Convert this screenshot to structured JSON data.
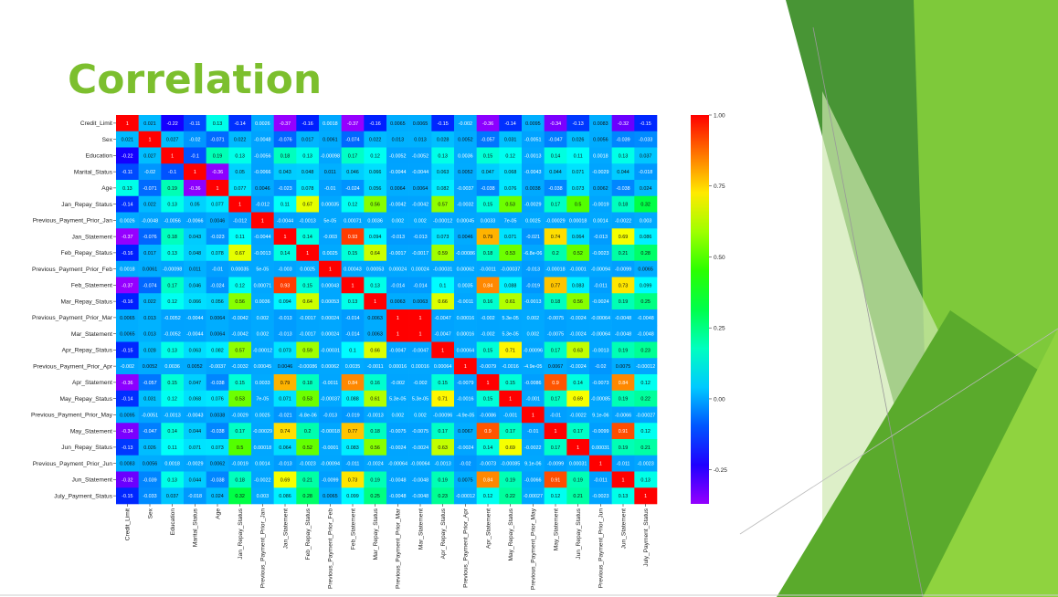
{
  "slide": {
    "title": "Correlation"
  },
  "chart_data": {
    "type": "heatmap",
    "title": "",
    "labels": [
      "Credit_Limit",
      "Sex",
      "Education",
      "Marital_Status",
      "Age",
      "Jan_Repay_Status",
      "Previous_Payment_Prior_Jan",
      "Jan_Statement",
      "Feb_Repay_Status",
      "Previous_Payment_Prior_Feb",
      "Feb_Statement",
      "Mar_Repay_Status",
      "Previous_Payment_Prior_Mar",
      "Mar_Statement",
      "Apr_Repay_Status",
      "Previous_Payment_Prior_Apr",
      "Apr_Statement",
      "May_Repay_Status",
      "Previous_Payment_Prior_May",
      "May_Statement",
      "Jun_Repay_Status",
      "Previous_Payment_Prior_Jun",
      "Jun_Statement",
      "July_Payment_Status"
    ],
    "values": [
      [
        "1",
        "0.021",
        "-0.22",
        "-0.11",
        "0.13",
        "-0.14",
        "0.0026",
        "-0.37",
        "-0.16",
        "0.0018",
        "-0.37",
        "-0.16",
        "0.0065",
        "0.0065",
        "-0.15",
        "-0.002",
        "-0.36",
        "-0.14",
        "0.0095",
        "-0.34",
        "-0.13",
        "0.0083",
        "-0.32",
        "-0.15"
      ],
      [
        "0.021",
        "1",
        "0.027",
        "-0.02",
        "-0.071",
        "0.022",
        "-0.0048",
        "-0.076",
        "0.017",
        "0.0061",
        "-0.074",
        "0.022",
        "0.013",
        "0.013",
        "0.028",
        "0.0052",
        "-0.057",
        "0.031",
        "-0.0051",
        "-0.047",
        "0.026",
        "0.0056",
        "-0.039",
        "-0.033"
      ],
      [
        "-0.22",
        "0.027",
        "1",
        "-0.1",
        "0.19",
        "0.13",
        "-0.0056",
        "0.18",
        "0.13",
        "-0.00098",
        "0.17",
        "0.12",
        "-0.0052",
        "-0.0052",
        "0.13",
        "0.0036",
        "0.15",
        "0.12",
        "-0.0013",
        "0.14",
        "0.11",
        "0.0018",
        "0.13",
        "0.037"
      ],
      [
        "-0.11",
        "-0.02",
        "-0.1",
        "1",
        "-0.36",
        "0.05",
        "-0.0066",
        "0.043",
        "0.048",
        "0.011",
        "0.046",
        "0.066",
        "-0.0044",
        "-0.0044",
        "0.063",
        "0.0052",
        "0.047",
        "0.068",
        "-0.0043",
        "0.044",
        "0.071",
        "-0.0029",
        "0.044",
        "-0.018"
      ],
      [
        "0.13",
        "-0.071",
        "0.19",
        "-0.36",
        "1",
        "0.077",
        "0.0046",
        "-0.023",
        "0.078",
        "-0.01",
        "-0.024",
        "0.056",
        "0.0064",
        "0.0064",
        "0.082",
        "-0.0037",
        "-0.038",
        "0.076",
        "0.0038",
        "-0.038",
        "0.073",
        "0.0062",
        "-0.038",
        "0.024"
      ],
      [
        "-0.14",
        "0.022",
        "0.13",
        "0.05",
        "0.077",
        "1",
        "-0.012",
        "0.11",
        "0.67",
        "0.00035",
        "0.12",
        "0.56",
        "-0.0042",
        "-0.0042",
        "0.57",
        "-0.0032",
        "0.15",
        "0.53",
        "-0.0029",
        "0.17",
        "0.5",
        "-0.0019",
        "0.18",
        "0.32"
      ],
      [
        "0.0026",
        "-0.0048",
        "-0.0056",
        "-0.0066",
        "0.0046",
        "-0.012",
        "1",
        "-0.0044",
        "-0.0013",
        "5e-05",
        "0.00071",
        "0.0036",
        "0.002",
        "0.002",
        "-0.00012",
        "0.00045",
        "0.0033",
        "7e-05",
        "0.0025",
        "-0.00029",
        "0.00018",
        "0.0014",
        "-0.0022",
        "0.003"
      ],
      [
        "-0.37",
        "-0.076",
        "0.18",
        "0.043",
        "-0.023",
        "0.11",
        "-0.0044",
        "1",
        "0.14",
        "-0.003",
        "0.93",
        "0.094",
        "-0.013",
        "-0.013",
        "0.073",
        "0.0046",
        "0.79",
        "0.071",
        "-0.021",
        "0.74",
        "0.064",
        "-0.013",
        "0.69",
        "0.086"
      ],
      [
        "-0.16",
        "0.017",
        "0.13",
        "0.048",
        "0.078",
        "0.67",
        "-0.0013",
        "0.14",
        "1",
        "0.0025",
        "0.15",
        "0.64",
        "-0.0017",
        "-0.0017",
        "0.59",
        "-0.00086",
        "0.18",
        "0.53",
        "-6.8e-06",
        "0.2",
        "0.52",
        "-0.0023",
        "0.21",
        "0.28"
      ],
      [
        "0.0018",
        "0.0061",
        "-0.00098",
        "0.011",
        "-0.01",
        "0.00035",
        "5e-05",
        "-0.003",
        "0.0025",
        "1",
        "0.00043",
        "0.00053",
        "0.00024",
        "0.00024",
        "-0.00031",
        "0.00062",
        "-0.0011",
        "-0.00037",
        "-0.013",
        "-0.00018",
        "-0.0001",
        "-0.00094",
        "-0.0099",
        "0.0065"
      ],
      [
        "-0.37",
        "-0.074",
        "0.17",
        "0.046",
        "-0.024",
        "0.12",
        "0.00071",
        "0.93",
        "0.15",
        "0.00043",
        "1",
        "0.13",
        "-0.014",
        "-0.014",
        "0.1",
        "0.0035",
        "0.84",
        "0.088",
        "-0.019",
        "0.77",
        "0.083",
        "-0.011",
        "0.73",
        "0.099"
      ],
      [
        "-0.16",
        "0.022",
        "0.12",
        "0.066",
        "0.056",
        "0.56",
        "0.0036",
        "0.094",
        "0.64",
        "0.00053",
        "0.13",
        "1",
        "0.0063",
        "0.0063",
        "0.66",
        "-0.0011",
        "0.16",
        "0.61",
        "-0.0013",
        "0.18",
        "0.56",
        "-0.0024",
        "0.19",
        "0.25"
      ],
      [
        "0.0065",
        "0.013",
        "-0.0052",
        "-0.0044",
        "0.0064",
        "-0.0042",
        "0.002",
        "-0.013",
        "-0.0017",
        "0.00024",
        "-0.014",
        "0.0063",
        "1",
        "1",
        "-0.0047",
        "0.00016",
        "-0.002",
        "5.3e-05",
        "0.002",
        "-0.0075",
        "-0.0024",
        "-0.00064",
        "-0.0048",
        "-0.0048"
      ],
      [
        "0.0065",
        "0.013",
        "-0.0052",
        "-0.0044",
        "0.0064",
        "-0.0042",
        "0.002",
        "-0.013",
        "-0.0017",
        "0.00024",
        "-0.014",
        "0.0063",
        "1",
        "1",
        "-0.0047",
        "0.00016",
        "-0.002",
        "5.3e-05",
        "0.002",
        "-0.0075",
        "-0.0024",
        "-0.00064",
        "-0.0048",
        "-0.0048"
      ],
      [
        "-0.15",
        "0.028",
        "0.13",
        "0.063",
        "0.082",
        "0.57",
        "-0.00012",
        "0.073",
        "0.59",
        "-0.00031",
        "0.1",
        "0.66",
        "-0.0047",
        "-0.0047",
        "1",
        "0.00064",
        "0.15",
        "0.71",
        "-0.00096",
        "0.17",
        "0.63",
        "-0.0013",
        "0.19",
        "0.23"
      ],
      [
        "-0.002",
        "0.0052",
        "0.0036",
        "0.0052",
        "-0.0037",
        "-0.0032",
        "0.00045",
        "0.0046",
        "-0.00086",
        "0.00062",
        "0.0035",
        "-0.0011",
        "0.00016",
        "0.00016",
        "0.00064",
        "1",
        "-0.0079",
        "-0.0016",
        "-4.9e-05",
        "0.0067",
        "-0.0024",
        "-0.02",
        "0.0075",
        "-0.00012"
      ],
      [
        "-0.36",
        "-0.057",
        "0.15",
        "0.047",
        "-0.038",
        "0.15",
        "0.0033",
        "0.79",
        "0.18",
        "-0.0011",
        "0.84",
        "0.16",
        "-0.002",
        "-0.002",
        "0.15",
        "-0.0079",
        "1",
        "0.15",
        "-0.0086",
        "0.9",
        "0.14",
        "-0.0073",
        "0.84",
        "0.12"
      ],
      [
        "-0.14",
        "0.031",
        "0.12",
        "0.068",
        "0.076",
        "0.53",
        "7e-05",
        "0.071",
        "0.53",
        "-0.00037",
        "0.088",
        "0.61",
        "5.3e-05",
        "5.3e-05",
        "0.71",
        "-0.0016",
        "0.15",
        "1",
        "-0.001",
        "0.17",
        "0.69",
        "-0.00085",
        "0.19",
        "0.22"
      ],
      [
        "0.0095",
        "-0.0051",
        "-0.0013",
        "-0.0043",
        "0.0038",
        "-0.0029",
        "0.0025",
        "-0.021",
        "-6.8e-06",
        "-0.013",
        "-0.019",
        "-0.0013",
        "0.002",
        "0.002",
        "-0.00096",
        "-4.9e-05",
        "-0.0086",
        "-0.001",
        "1",
        "-0.01",
        "-0.0022",
        "9.1e-06",
        "-0.0066",
        "-0.00027"
      ],
      [
        "-0.34",
        "-0.047",
        "0.14",
        "0.044",
        "-0.038",
        "0.17",
        "-0.00029",
        "0.74",
        "0.2",
        "-0.00018",
        "0.77",
        "0.18",
        "-0.0075",
        "-0.0075",
        "0.17",
        "0.0067",
        "0.9",
        "0.17",
        "-0.01",
        "1",
        "0.17",
        "-0.0099",
        "0.91",
        "0.12"
      ],
      [
        "-0.13",
        "0.026",
        "0.11",
        "0.071",
        "0.073",
        "0.5",
        "0.00018",
        "0.064",
        "0.52",
        "-0.0001",
        "0.083",
        "0.56",
        "-0.0024",
        "-0.0024",
        "0.63",
        "-0.0024",
        "0.14",
        "0.69",
        "-0.0022",
        "0.17",
        "1",
        "0.00031",
        "0.19",
        "0.21"
      ],
      [
        "0.0083",
        "0.0056",
        "0.0018",
        "-0.0029",
        "0.0062",
        "-0.0019",
        "0.0014",
        "-0.013",
        "-0.0023",
        "-0.00094",
        "-0.011",
        "-0.0024",
        "-0.00064",
        "-0.00064",
        "-0.0013",
        "-0.02",
        "-0.0073",
        "-0.00085",
        "9.1e-06",
        "-0.0099",
        "0.00031",
        "1",
        "-0.011",
        "-0.0023"
      ],
      [
        "-0.32",
        "-0.039",
        "0.13",
        "0.044",
        "-0.038",
        "0.18",
        "-0.0022",
        "0.69",
        "0.21",
        "-0.0099",
        "0.73",
        "0.19",
        "-0.0048",
        "-0.0048",
        "0.19",
        "0.0075",
        "0.84",
        "0.19",
        "-0.0066",
        "0.91",
        "0.19",
        "-0.011",
        "1",
        "0.13"
      ],
      [
        "-0.15",
        "-0.033",
        "0.037",
        "-0.018",
        "0.024",
        "0.32",
        "0.003",
        "0.086",
        "0.28",
        "0.0065",
        "0.099",
        "0.25",
        "-0.0048",
        "-0.0048",
        "0.23",
        "-0.00012",
        "0.12",
        "0.22",
        "-0.00027",
        "0.12",
        "0.21",
        "-0.0023",
        "0.13",
        "1"
      ]
    ],
    "colorbar": {
      "ticks": [
        "1.00",
        "0.75",
        "0.50",
        "0.25",
        "0.00",
        "-0.25"
      ],
      "range": [
        -0.37,
        1.0
      ],
      "colormap": "hsv-rainbow"
    }
  }
}
